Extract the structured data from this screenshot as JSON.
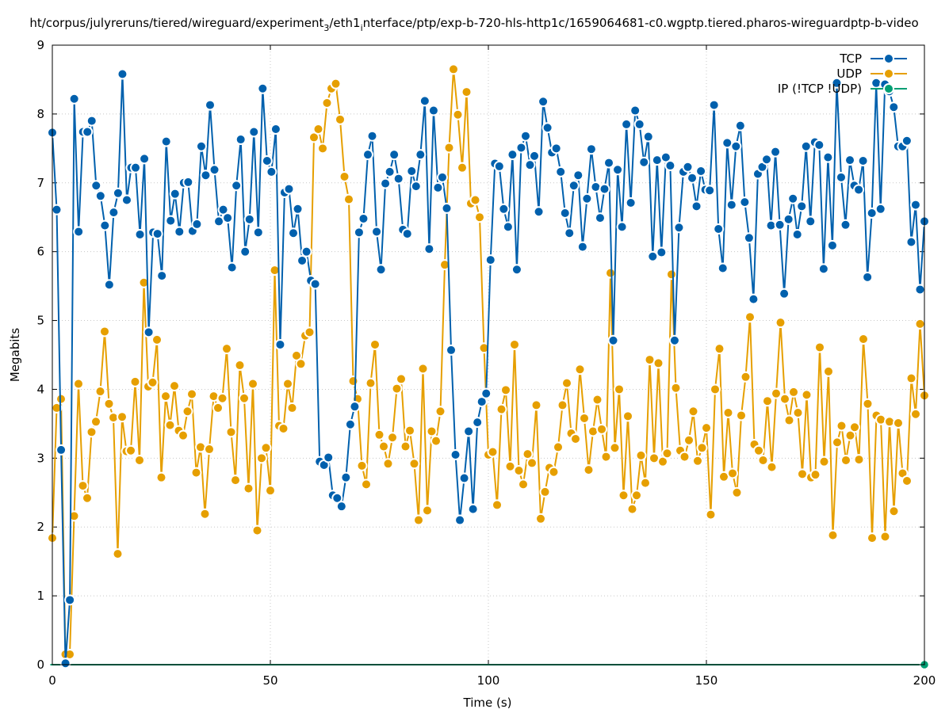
{
  "chart_data": {
    "type": "line",
    "title": "ht/corpus/julyreruns/tiered/wireguard/experiment_3/eth1_interface/ptp/exp-b-720-hls-http1c/1659064681-c0.wgptp.tiered.pharos-wireguardptp-b-video",
    "title_parts": {
      "a": "ht/corpus/julyreruns/tiered/wireguard/experiment",
      "sub_a": "3",
      "b": "/eth1",
      "sub_b": "i",
      "c": "nterface/ptp/exp-b-720-hls-http1c/1659064681-c0.wgptp.tiered.pharos-wireguardptp-b-video"
    },
    "xlabel": "Time (s)",
    "ylabel": "Megabits",
    "xlim": [
      0,
      200
    ],
    "ylim": [
      0,
      9
    ],
    "x_ticks": [
      "0",
      "50",
      "100",
      "150",
      "200"
    ],
    "y_ticks": [
      "0",
      "1",
      "2",
      "3",
      "4",
      "5",
      "6",
      "7",
      "8",
      "9"
    ],
    "legend_position": "top-right",
    "grid": true,
    "series": [
      {
        "name": "TCP",
        "color": "#0060ad",
        "values": [
          7.73,
          6.61,
          3.12,
          0.02,
          0.94,
          8.22,
          6.29,
          7.74,
          7.74,
          7.9,
          6.96,
          6.81,
          6.38,
          5.52,
          6.57,
          6.85,
          8.58,
          6.75,
          7.22,
          7.22,
          6.25,
          7.35,
          4.83,
          6.28,
          6.26,
          5.65,
          7.6,
          6.45,
          6.84,
          6.29,
          7.0,
          7.01,
          6.3,
          6.4,
          7.53,
          7.11,
          8.13,
          7.19,
          6.44,
          6.61,
          6.49,
          5.77,
          6.96,
          7.63,
          6.0,
          6.47,
          7.74,
          6.28,
          8.37,
          7.32,
          7.16,
          7.78,
          4.65,
          6.86,
          6.91,
          6.27,
          6.62,
          5.87,
          6.0,
          5.58,
          5.53,
          2.95,
          2.9,
          3.01,
          2.46,
          2.42,
          2.3,
          2.72,
          3.49,
          3.75,
          6.28,
          6.48,
          7.41,
          7.68,
          6.29,
          5.74,
          6.99,
          7.16,
          7.41,
          7.06,
          6.32,
          6.26,
          7.17,
          6.95,
          7.41,
          8.19,
          6.04,
          8.05,
          6.93,
          7.08,
          6.63,
          4.57,
          3.05,
          2.1,
          2.71,
          3.39,
          2.26,
          3.52,
          3.82,
          3.94,
          5.88,
          7.28,
          7.24,
          6.62,
          6.36,
          7.41,
          5.74,
          7.51,
          7.68,
          7.26,
          7.39,
          6.58,
          8.18,
          7.8,
          7.44,
          7.5,
          7.16,
          6.56,
          6.27,
          6.96,
          7.11,
          6.07,
          6.77,
          7.49,
          6.94,
          6.49,
          6.91,
          7.29,
          4.71,
          7.19,
          6.36,
          7.85,
          6.71,
          8.05,
          7.85,
          7.3,
          7.67,
          5.93,
          7.33,
          5.99,
          7.37,
          7.25,
          4.71,
          6.35,
          7.16,
          7.23,
          7.07,
          6.66,
          7.17,
          6.9,
          6.89,
          8.13,
          6.33,
          5.76,
          7.58,
          6.68,
          7.53,
          7.83,
          6.72,
          6.2,
          5.31,
          7.13,
          7.23,
          7.34,
          6.38,
          7.45,
          6.39,
          5.39,
          6.47,
          6.77,
          6.25,
          6.66,
          7.53,
          6.44,
          7.59,
          7.55,
          5.75,
          7.37,
          6.09,
          8.45,
          7.08,
          6.39,
          7.33,
          6.96,
          6.9,
          7.32,
          5.63,
          6.56,
          8.45,
          6.62,
          8.43,
          8.33,
          8.1,
          7.53,
          7.53,
          7.61,
          6.14,
          6.68,
          5.45,
          6.44
        ]
      },
      {
        "name": "UDP",
        "color": "#e69f00",
        "values": [
          1.84,
          3.73,
          3.86,
          0.15,
          0.15,
          2.16,
          4.08,
          2.6,
          2.42,
          3.38,
          3.53,
          3.97,
          4.84,
          3.79,
          3.59,
          1.61,
          3.6,
          3.1,
          3.11,
          4.11,
          2.97,
          5.55,
          4.04,
          4.1,
          4.72,
          2.72,
          3.9,
          3.48,
          4.05,
          3.4,
          3.33,
          3.68,
          3.93,
          2.79,
          3.16,
          2.19,
          3.13,
          3.9,
          3.73,
          3.87,
          4.59,
          3.38,
          2.68,
          4.35,
          3.87,
          2.56,
          4.08,
          1.95,
          3.0,
          3.15,
          2.53,
          5.73,
          3.47,
          3.43,
          4.08,
          3.73,
          4.49,
          4.37,
          4.78,
          4.83,
          7.66,
          7.78,
          7.5,
          8.16,
          8.37,
          8.44,
          7.92,
          7.09,
          6.76,
          4.12,
          3.86,
          2.89,
          2.62,
          4.09,
          4.65,
          3.34,
          3.17,
          2.92,
          3.3,
          4.01,
          4.15,
          3.17,
          3.4,
          2.92,
          2.1,
          4.3,
          2.24,
          3.39,
          3.25,
          3.68,
          5.81,
          7.51,
          8.65,
          7.99,
          7.22,
          8.32,
          6.7,
          6.75,
          6.5,
          4.6,
          3.05,
          3.09,
          2.32,
          3.71,
          3.99,
          2.88,
          4.65,
          2.82,
          2.62,
          3.06,
          2.93,
          3.77,
          2.12,
          2.51,
          2.86,
          2.8,
          3.16,
          3.77,
          4.09,
          3.36,
          3.28,
          4.29,
          3.58,
          2.83,
          3.39,
          3.85,
          3.42,
          3.02,
          5.69,
          3.15,
          4.0,
          2.46,
          3.61,
          2.26,
          2.46,
          3.04,
          2.64,
          4.43,
          3.0,
          4.38,
          2.95,
          3.07,
          5.67,
          4.02,
          3.11,
          3.02,
          3.26,
          3.68,
          2.96,
          3.15,
          3.44,
          2.18,
          4.0,
          4.59,
          2.73,
          3.66,
          2.78,
          2.5,
          3.62,
          4.18,
          5.05,
          3.2,
          3.11,
          2.97,
          3.83,
          2.87,
          3.94,
          4.97,
          3.86,
          3.55,
          3.96,
          3.66,
          2.77,
          3.92,
          2.72,
          2.76,
          4.61,
          2.95,
          4.26,
          1.88,
          3.23,
          3.47,
          2.97,
          3.33,
          3.45,
          2.98,
          4.73,
          3.79,
          1.84,
          3.62,
          3.56,
          1.86,
          3.53,
          2.23,
          3.51,
          2.78,
          2.67,
          4.16,
          3.64,
          4.95,
          3.91
        ]
      },
      {
        "name": "IP (!TCP  !UDP)",
        "color": "#009e73",
        "values": [
          0,
          0,
          0,
          0,
          0,
          0,
          0,
          0,
          0,
          0,
          0,
          0,
          0,
          0,
          0,
          0,
          0,
          0,
          0,
          0,
          0,
          0,
          0,
          0,
          0,
          0,
          0,
          0,
          0,
          0,
          0,
          0,
          0,
          0,
          0,
          0,
          0,
          0,
          0,
          0,
          0,
          0,
          0,
          0,
          0,
          0,
          0,
          0,
          0,
          0,
          0,
          0,
          0,
          0,
          0,
          0,
          0,
          0,
          0,
          0,
          0,
          0,
          0,
          0,
          0,
          0,
          0,
          0,
          0,
          0,
          0,
          0,
          0,
          0,
          0,
          0,
          0,
          0,
          0,
          0,
          0,
          0,
          0,
          0,
          0,
          0,
          0,
          0,
          0,
          0,
          0,
          0,
          0,
          0,
          0,
          0,
          0,
          0,
          0,
          0,
          0,
          0,
          0,
          0,
          0,
          0,
          0,
          0,
          0,
          0,
          0,
          0,
          0,
          0,
          0,
          0,
          0,
          0,
          0,
          0,
          0,
          0,
          0,
          0,
          0,
          0,
          0,
          0,
          0,
          0,
          0,
          0,
          0,
          0,
          0,
          0,
          0,
          0,
          0,
          0,
          0,
          0,
          0,
          0,
          0,
          0,
          0,
          0,
          0,
          0,
          0,
          0,
          0,
          0,
          0,
          0,
          0,
          0,
          0,
          0,
          0,
          0,
          0,
          0,
          0,
          0,
          0,
          0,
          0,
          0,
          0,
          0,
          0,
          0,
          0,
          0,
          0,
          0,
          0,
          0,
          0,
          0,
          0,
          0,
          0,
          0,
          0,
          0,
          0,
          0,
          0,
          0,
          0,
          0,
          0,
          0,
          0,
          0,
          0,
          0,
          0
        ]
      }
    ]
  }
}
